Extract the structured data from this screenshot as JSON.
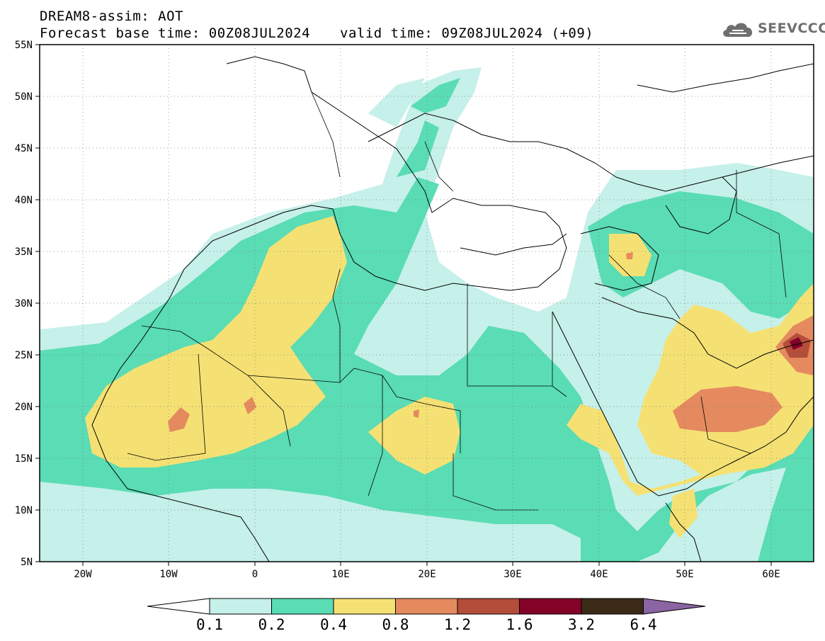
{
  "header": {
    "line1": "DREAM8-assim: AOT",
    "base_time": "Forecast base time: 00Z08JUL2024",
    "valid_time": "valid time: 09Z08JUL2024 (+09)"
  },
  "logo": {
    "text": "SEEVCCC",
    "icon": "cloud-icon",
    "color": "#6f6f6f"
  },
  "map": {
    "lat_ticks": [
      "55N",
      "50N",
      "45N",
      "40N",
      "35N",
      "30N",
      "25N",
      "20N",
      "15N",
      "10N",
      "5N"
    ],
    "lon_ticks": [
      "20W",
      "10W",
      "0",
      "10E",
      "20E",
      "30E",
      "40E",
      "50E",
      "60E"
    ],
    "lon_range": [
      -25,
      65
    ],
    "lat_range": [
      5,
      55
    ]
  },
  "legend": {
    "labels": [
      "0.1",
      "0.2",
      "0.4",
      "0.8",
      "1.2",
      "1.6",
      "3.2",
      "6.4"
    ],
    "colors": [
      "#ffffff",
      "#c6f0ea",
      "#5adcb4",
      "#f5e173",
      "#e58a5f",
      "#b44d3a",
      "#820228",
      "#3a2a17",
      "#8b64a2"
    ]
  }
}
